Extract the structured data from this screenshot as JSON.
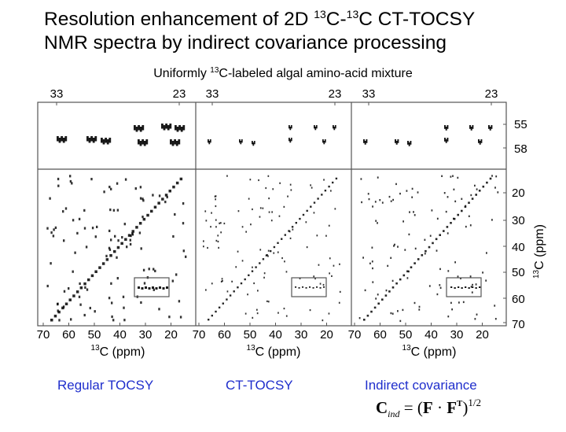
{
  "title": {
    "line1_a": "Resolution enhancement of 2D ",
    "line1_sup1": "13",
    "line1_b": "C-",
    "line1_sup2": "13",
    "line1_c": "C CT-TOCSY",
    "line2": "NMR spectra by indirect covariance processing"
  },
  "subtitle": {
    "a": "Uniformly ",
    "sup": "13",
    "b": "C-labeled algal amino-acid mixture"
  },
  "figure": {
    "top_axis_ticks": [
      "33",
      "23"
    ],
    "top_right_ticks": [
      "55",
      "58"
    ],
    "right_axis_ticks": [
      "20",
      "30",
      "40",
      "50",
      "60",
      "70"
    ],
    "right_axis_label_sup": "13",
    "right_axis_label": "C (ppm)",
    "bottom_axis_ticks": [
      "70",
      "60",
      "50",
      "40",
      "30",
      "20"
    ],
    "bottom_axis_label_sup": "13",
    "bottom_axis_label": "C  (ppm)"
  },
  "captions": [
    "Regular TOCSY",
    "CT-TOCSY",
    "Indirect covariance"
  ],
  "formula": {
    "c": "C",
    "sub": "ind",
    "eq": " = (",
    "f1": "F",
    "dot": " · ",
    "f2": "F",
    "t": "T",
    "close": ")",
    "exp": "1/2"
  },
  "colors": {
    "caption": "#1f2ecc",
    "frame": "#555555",
    "peak": "#000000"
  }
}
